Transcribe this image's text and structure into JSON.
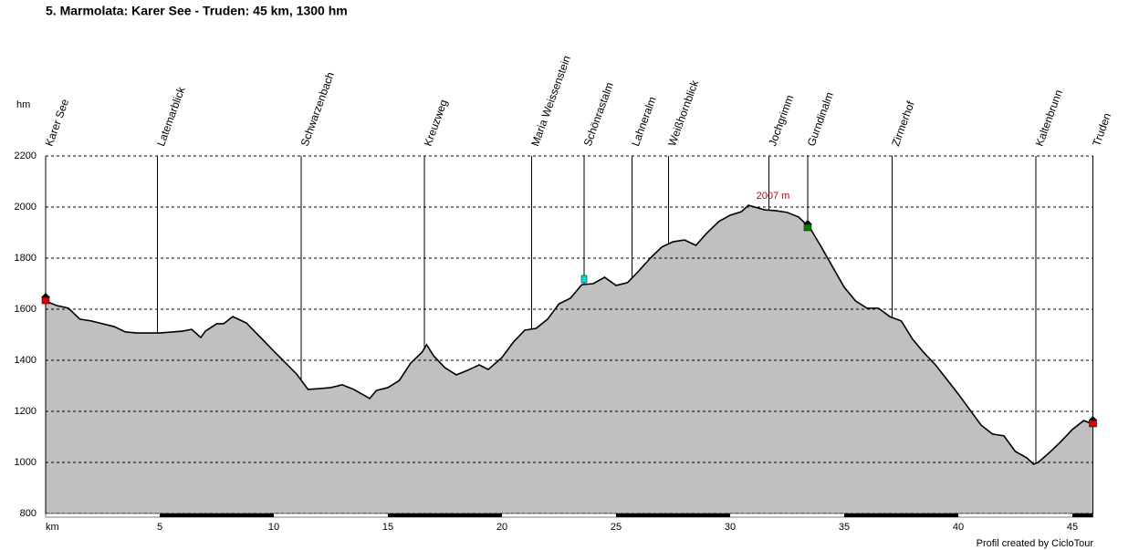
{
  "chart_data": {
    "type": "area",
    "title": "5. Marmolata: Karer See - Truden: 45 km, 1300 hm",
    "xlabel": "km",
    "ylabel": "hm",
    "footer": "Profil created by CicloTour",
    "xlim": [
      0,
      45.9
    ],
    "ylim": [
      800,
      2200
    ],
    "xticks": [
      5,
      10,
      15,
      20,
      25,
      30,
      35,
      40,
      45
    ],
    "yticks": [
      800,
      1000,
      1200,
      1400,
      1600,
      1800,
      2000,
      2200
    ],
    "grid": true,
    "fill": "#c0c0c0",
    "line_color": "#000000",
    "waypoints": [
      {
        "name": "Karer See",
        "x": 0
      },
      {
        "name": "Latemarblick",
        "x": 4.9
      },
      {
        "name": "Schwarzenbach",
        "x": 11.2
      },
      {
        "name": "Kreuzweg",
        "x": 16.6
      },
      {
        "name": "Maria Weissenstein",
        "x": 21.3
      },
      {
        "name": "Schönrastalm",
        "x": 23.6
      },
      {
        "name": "Lahneralm",
        "x": 25.7
      },
      {
        "name": "Weißhornblick",
        "x": 27.3
      },
      {
        "name": "Jochgrimm",
        "x": 31.7
      },
      {
        "name": "Gurndinalm",
        "x": 33.4
      },
      {
        "name": "Zirmerhof",
        "x": 37.1
      },
      {
        "name": "Kaltenbrunn",
        "x": 43.4
      },
      {
        "name": "Truden",
        "x": 45.9
      }
    ],
    "annotation": {
      "text": "2007 m",
      "x": 30.8,
      "y": 2007
    },
    "profile": {
      "x": [
        0,
        0.5,
        1,
        1.5,
        2,
        3,
        3.5,
        4,
        5,
        6,
        6.4,
        6.8,
        7,
        7.5,
        7.8,
        8.2,
        8.8,
        9.5,
        10,
        11,
        11.5,
        12,
        12.5,
        13,
        13.5,
        14,
        14.2,
        14.5,
        15,
        15.5,
        16,
        16.5,
        16.7,
        17,
        17.5,
        18,
        18.5,
        19,
        19.4,
        20,
        20.5,
        21,
        21.5,
        22,
        22.5,
        23,
        23.5,
        24,
        24.5,
        25,
        25.5,
        26,
        26.5,
        27,
        27.5,
        28,
        28.5,
        29,
        29.5,
        30,
        30.5,
        30.8,
        31.5,
        32,
        32.5,
        33,
        33.5,
        34,
        34.5,
        35,
        35.5,
        36,
        36.5,
        37,
        37.5,
        38,
        38.5,
        39,
        39.5,
        40,
        40.5,
        41,
        41.5,
        42,
        42.5,
        43,
        43.3,
        43.5,
        44,
        44.5,
        45,
        45.5,
        45.9
      ],
      "y": [
        1632,
        1614,
        1604,
        1561,
        1554,
        1532,
        1511,
        1507,
        1507,
        1514,
        1521,
        1489,
        1514,
        1543,
        1543,
        1571,
        1546,
        1482,
        1436,
        1346,
        1286,
        1289,
        1293,
        1304,
        1286,
        1261,
        1250,
        1282,
        1293,
        1321,
        1389,
        1432,
        1461,
        1418,
        1371,
        1343,
        1361,
        1382,
        1364,
        1411,
        1471,
        1518,
        1525,
        1561,
        1621,
        1643,
        1696,
        1700,
        1725,
        1693,
        1704,
        1750,
        1800,
        1843,
        1864,
        1871,
        1850,
        1900,
        1943,
        1968,
        1982,
        2007,
        1989,
        1986,
        1979,
        1961,
        1918,
        1843,
        1764,
        1686,
        1632,
        1604,
        1604,
        1571,
        1554,
        1482,
        1429,
        1382,
        1325,
        1268,
        1207,
        1146,
        1111,
        1104,
        1043,
        1018,
        993,
        1000,
        1039,
        1082,
        1129,
        1164,
        1150
      ]
    }
  }
}
